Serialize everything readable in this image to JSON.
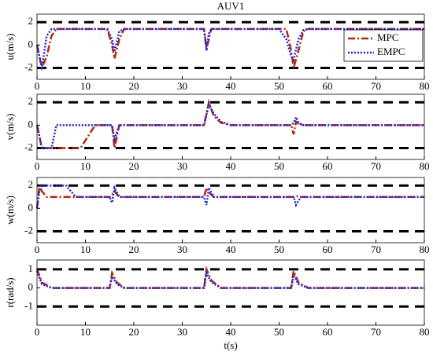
{
  "chart_data": [
    {
      "type": "line",
      "title": "AUV1",
      "ylabel": "u(m/s)",
      "ylim": [
        -3,
        2.7
      ],
      "yticks": [
        -2,
        0,
        2
      ],
      "xlim": [
        0,
        80
      ],
      "xticks": [
        0,
        10,
        20,
        30,
        40,
        50,
        60,
        70,
        80
      ],
      "constraints": [
        -2,
        2
      ],
      "legend": "upper right",
      "x": [
        0,
        1,
        2,
        3,
        4,
        10,
        14.5,
        15.5,
        16,
        17,
        18,
        30,
        34.5,
        35,
        35.5,
        36,
        50,
        51.5,
        52.5,
        53,
        54,
        55,
        56,
        80
      ],
      "series": [
        {
          "name": "MPC",
          "color": "#b22a0a",
          "values": [
            0,
            -2,
            -1,
            0.8,
            1.4,
            1.4,
            1.4,
            0,
            -1.2,
            0.5,
            1.4,
            1.4,
            1.4,
            -0.3,
            0.5,
            1.4,
            1.4,
            1.4,
            -0.5,
            -2,
            -0.5,
            1.2,
            1.4,
            1.4
          ]
        },
        {
          "name": "EMPC",
          "color": "#2020e0",
          "values": [
            0,
            -2,
            0.8,
            1.4,
            1.4,
            1.4,
            1.4,
            0.5,
            -0.6,
            1.2,
            1.4,
            1.4,
            1.4,
            -0.5,
            1,
            1.4,
            1.4,
            0.5,
            -1,
            -1.3,
            0.5,
            1.3,
            1.4,
            1.4
          ]
        }
      ]
    },
    {
      "type": "line",
      "ylabel": "v(m/s)",
      "ylim": [
        -3,
        2.7
      ],
      "yticks": [
        -2,
        0,
        2
      ],
      "xlim": [
        0,
        80
      ],
      "xticks": [
        0,
        10,
        20,
        30,
        40,
        50,
        60,
        70,
        80
      ],
      "constraints": [
        -2,
        2
      ],
      "x": [
        0,
        1,
        3,
        4,
        9,
        12,
        15.5,
        16,
        17,
        34.5,
        35.5,
        36.5,
        38,
        40,
        52.5,
        53,
        53.5,
        54,
        55,
        80
      ],
      "series": [
        {
          "name": "MPC",
          "color": "#b22a0a",
          "values": [
            0,
            -2,
            -2,
            -2,
            -2,
            0,
            0,
            -2,
            0,
            0,
            2,
            0.8,
            0.2,
            0,
            0,
            -0.8,
            0.3,
            0.1,
            0,
            0
          ]
        },
        {
          "name": "EMPC",
          "color": "#2020e0",
          "values": [
            0,
            -2,
            -2,
            0,
            0,
            0,
            0,
            -1.2,
            0,
            0,
            1.8,
            1,
            0.3,
            0,
            0,
            0.2,
            0.7,
            0.2,
            0,
            0
          ]
        }
      ]
    },
    {
      "type": "line",
      "ylabel": "w(m/s)",
      "ylim": [
        -3,
        2.7
      ],
      "yticks": [
        -2,
        0,
        2
      ],
      "xlim": [
        0,
        80
      ],
      "xticks": [
        0,
        10,
        20,
        30,
        40,
        50,
        60,
        70,
        80
      ],
      "constraints": [
        -2,
        2
      ],
      "x": [
        0,
        0.5,
        1,
        2,
        6,
        8,
        15,
        15.5,
        16,
        17,
        34.5,
        35,
        35.5,
        36.5,
        53,
        53.5,
        54.5,
        80
      ],
      "series": [
        {
          "name": "MPC",
          "color": "#b22a0a",
          "values": [
            0,
            2,
            1.5,
            1,
            1,
            1,
            1,
            1.2,
            1.5,
            1,
            1,
            1.8,
            1.4,
            1,
            1,
            1.1,
            1,
            1
          ]
        },
        {
          "name": "EMPC",
          "color": "#2020e0",
          "values": [
            0,
            1.5,
            2,
            2,
            2,
            1,
            1,
            0.5,
            1.8,
            1,
            1,
            0.3,
            1.8,
            1,
            1,
            0.3,
            1,
            1
          ]
        }
      ]
    },
    {
      "type": "line",
      "ylabel": "r(rad/s)",
      "xlabel": "t(s)",
      "ylim": [
        -2,
        1.5
      ],
      "yticks": [
        -1,
        0,
        1
      ],
      "xlim": [
        0,
        80
      ],
      "xticks": [
        0,
        10,
        20,
        30,
        40,
        50,
        60,
        70,
        80
      ],
      "constraints": [
        -1,
        1
      ],
      "x": [
        0,
        1,
        3,
        15,
        15.5,
        16.5,
        18,
        34.5,
        35,
        36,
        38,
        52.5,
        53,
        54,
        56,
        80
      ],
      "series": [
        {
          "name": "MPC",
          "color": "#b22a0a",
          "values": [
            1,
            0.3,
            0,
            0,
            0.8,
            0.3,
            0,
            0,
            1,
            0.4,
            0,
            0,
            0.9,
            0.3,
            0,
            0
          ]
        },
        {
          "name": "EMPC",
          "color": "#2020e0",
          "values": [
            0.9,
            0.2,
            0,
            0,
            0.6,
            0.2,
            0,
            0,
            0.8,
            0.3,
            0,
            0,
            0.7,
            0.2,
            0,
            0
          ]
        }
      ]
    }
  ]
}
